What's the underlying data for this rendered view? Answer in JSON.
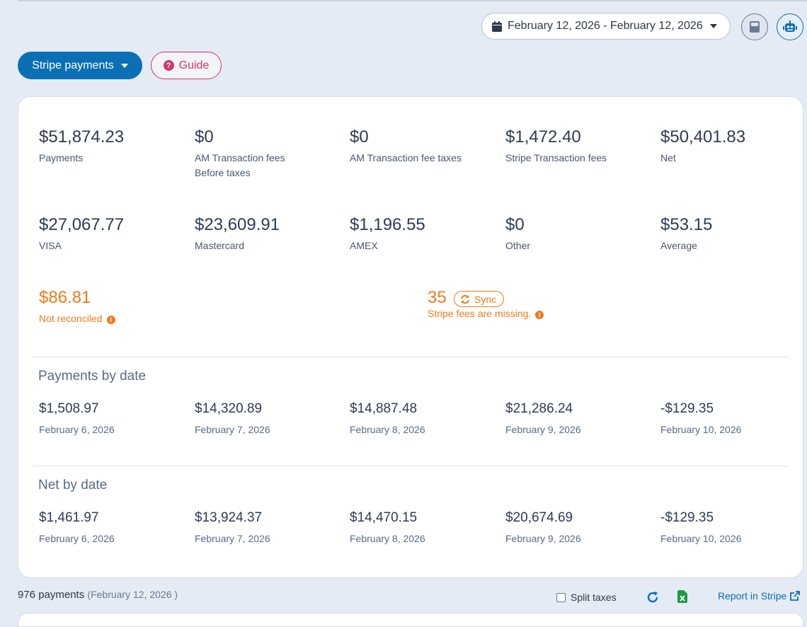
{
  "header": {
    "date_range": "February 12, 2026 - February 12, 2026",
    "stripe_button": "Stripe payments",
    "guide_button": "Guide"
  },
  "summary": [
    {
      "value": "$51,874.23",
      "label": "Payments"
    },
    {
      "value": "$0",
      "label": "AM Transaction fees",
      "label2": "Before taxes"
    },
    {
      "value": "$0",
      "label": "AM Transaction fee taxes"
    },
    {
      "value": "$1,472.40",
      "label": "Stripe Transaction fees"
    },
    {
      "value": "$50,401.83",
      "label": "Net"
    }
  ],
  "cards": [
    {
      "value": "$27,067.77",
      "label": "VISA"
    },
    {
      "value": "$23,609.91",
      "label": "Mastercard"
    },
    {
      "value": "$1,196.55",
      "label": "AMEX"
    },
    {
      "value": "$0",
      "label": "Other"
    },
    {
      "value": "$53.15",
      "label": "Average"
    }
  ],
  "not_reconciled": {
    "value": "$86.81",
    "label": "Not reconciled"
  },
  "missing_fees": {
    "value": "35",
    "sync_label": "Sync",
    "label": "Stripe fees are missing."
  },
  "payments_by_date": {
    "title": "Payments by date",
    "items": [
      {
        "value": "$1,508.97",
        "date": "February 6, 2026"
      },
      {
        "value": "$14,320.89",
        "date": "February 7, 2026"
      },
      {
        "value": "$14,887.48",
        "date": "February 8, 2026"
      },
      {
        "value": "$21,286.24",
        "date": "February 9, 2026"
      },
      {
        "value": "-$129.35",
        "date": "February 10, 2026"
      }
    ]
  },
  "net_by_date": {
    "title": "Net by date",
    "items": [
      {
        "value": "$1,461.97",
        "date": "February 6, 2026"
      },
      {
        "value": "$13,924.37",
        "date": "February 7, 2026"
      },
      {
        "value": "$14,470.15",
        "date": "February 8, 2026"
      },
      {
        "value": "$20,674.69",
        "date": "February 9, 2026"
      },
      {
        "value": "-$129.35",
        "date": "February 10, 2026"
      }
    ]
  },
  "footer": {
    "count": "976 payments",
    "count_sub": "(February 12, 2026 )",
    "split_taxes": "Split taxes",
    "report_link": "Report in Stripe"
  },
  "colors": {
    "primary": "#0a6fb5",
    "guide": "#d6336c",
    "warning": "#ef7b1a",
    "excel": "#1d9a45"
  },
  "icons": [
    "calendar-icon",
    "caret-down-icon",
    "calculator-icon",
    "robot-icon",
    "question-circle-icon",
    "info-icon",
    "sync-icon",
    "refresh-icon",
    "excel-icon",
    "external-link-icon"
  ]
}
